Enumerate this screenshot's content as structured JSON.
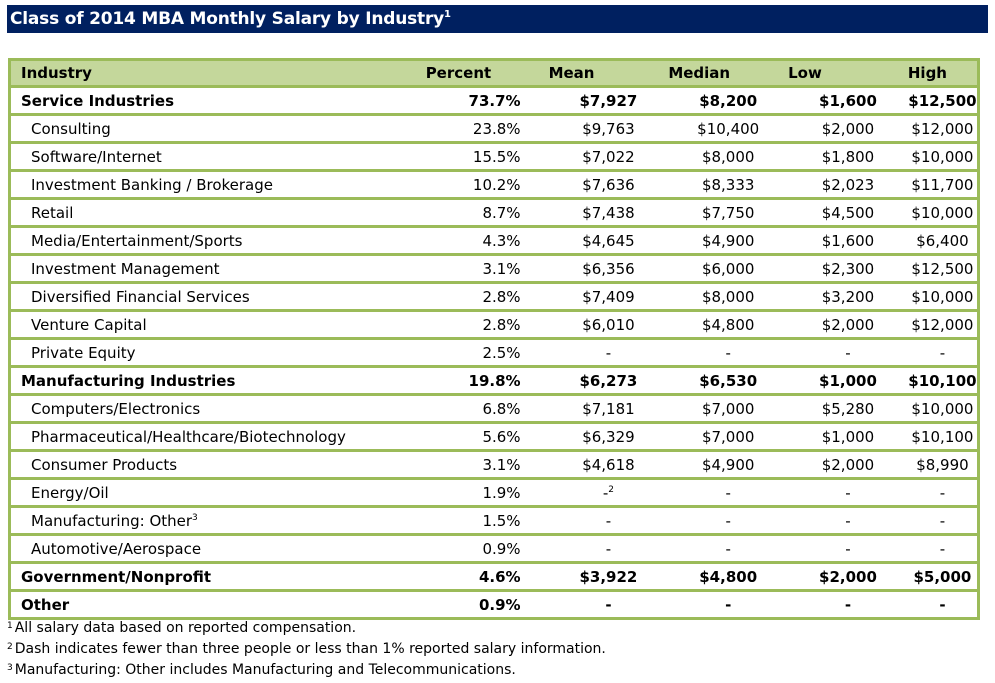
{
  "title": "Class of 2014 MBA Monthly Salary by Industry",
  "title_footnote_ref": "1",
  "colors": {
    "title_bg": "#002060",
    "header_bg": "#c4d79b",
    "border": "#9bbb59"
  },
  "table": {
    "headers": [
      "Industry",
      "Percent",
      "Mean",
      "Median",
      "Low",
      "High"
    ],
    "rows": [
      {
        "type": "group",
        "industry": "Service Industries",
        "percent": "73.7%",
        "mean": "$7,927",
        "median": "$8,200",
        "low": "$1,600",
        "high": "$12,500"
      },
      {
        "type": "sub",
        "industry": "Consulting",
        "percent": "23.8%",
        "mean": "$9,763",
        "median": "$10,400",
        "low": "$2,000",
        "high": "$12,000"
      },
      {
        "type": "sub",
        "industry": "Software/Internet",
        "percent": "15.5%",
        "mean": "$7,022",
        "median": "$8,000",
        "low": "$1,800",
        "high": "$10,000"
      },
      {
        "type": "sub",
        "industry": "Investment Banking / Brokerage",
        "percent": "10.2%",
        "mean": "$7,636",
        "median": "$8,333",
        "low": "$2,023",
        "high": "$11,700"
      },
      {
        "type": "sub",
        "industry": "Retail",
        "percent": "8.7%",
        "mean": "$7,438",
        "median": "$7,750",
        "low": "$4,500",
        "high": "$10,000"
      },
      {
        "type": "sub",
        "industry": "Media/Entertainment/Sports",
        "percent": "4.3%",
        "mean": "$4,645",
        "median": "$4,900",
        "low": "$1,600",
        "high": "$6,400"
      },
      {
        "type": "sub",
        "industry": "Investment Management",
        "percent": "3.1%",
        "mean": "$6,356",
        "median": "$6,000",
        "low": "$2,300",
        "high": "$12,500"
      },
      {
        "type": "sub",
        "industry": "Diversified Financial Services",
        "percent": "2.8%",
        "mean": "$7,409",
        "median": "$8,000",
        "low": "$3,200",
        "high": "$10,000"
      },
      {
        "type": "sub",
        "industry": "Venture Capital",
        "percent": "2.8%",
        "mean": "$6,010",
        "median": "$4,800",
        "low": "$2,000",
        "high": "$12,000"
      },
      {
        "type": "sub",
        "industry": "Private Equity",
        "percent": "2.5%",
        "mean": "-",
        "median": "-",
        "low": "-",
        "high": "-"
      },
      {
        "type": "group",
        "industry": "Manufacturing Industries",
        "percent": "19.8%",
        "mean": "$6,273",
        "median": "$6,530",
        "low": "$1,000",
        "high": "$10,100"
      },
      {
        "type": "sub",
        "industry": "Computers/Electronics",
        "percent": "6.8%",
        "mean": "$7,181",
        "median": "$7,000",
        "low": "$5,280",
        "high": "$10,000"
      },
      {
        "type": "sub",
        "industry": "Pharmaceutical/Healthcare/Biotechnology",
        "percent": "5.6%",
        "mean": "$6,329",
        "median": "$7,000",
        "low": "$1,000",
        "high": "$10,100"
      },
      {
        "type": "sub",
        "industry": "Consumer Products",
        "percent": "3.1%",
        "mean": "$4,618",
        "median": "$4,900",
        "low": "$2,000",
        "high": "$8,990"
      },
      {
        "type": "sub",
        "industry": "Energy/Oil",
        "percent": "1.9%",
        "mean": "-",
        "mean_footnote": "2",
        "median": "-",
        "low": "-",
        "high": "-"
      },
      {
        "type": "sub",
        "industry": "Manufacturing: Other",
        "industry_footnote": "3",
        "percent": "1.5%",
        "mean": "-",
        "median": "-",
        "low": "-",
        "high": "-"
      },
      {
        "type": "sub",
        "industry": "Automotive/Aerospace",
        "percent": "0.9%",
        "mean": "-",
        "median": "-",
        "low": "-",
        "high": "-"
      },
      {
        "type": "group",
        "industry": "Government/Nonprofit",
        "percent": "4.6%",
        "mean": "$3,922",
        "median": "$4,800",
        "low": "$2,000",
        "high": "$5,000"
      },
      {
        "type": "group",
        "industry": "Other",
        "percent": "0.9%",
        "mean": "-",
        "median": "-",
        "low": "-",
        "high": "-"
      }
    ]
  },
  "footnotes": [
    {
      "ref": "1",
      "text": "All salary data based on reported compensation."
    },
    {
      "ref": "2",
      "text": "Dash indicates fewer than three people or less than 1% reported salary information."
    },
    {
      "ref": "3",
      "text": "Manufacturing: Other includes Manufacturing and Telecommunications."
    }
  ]
}
